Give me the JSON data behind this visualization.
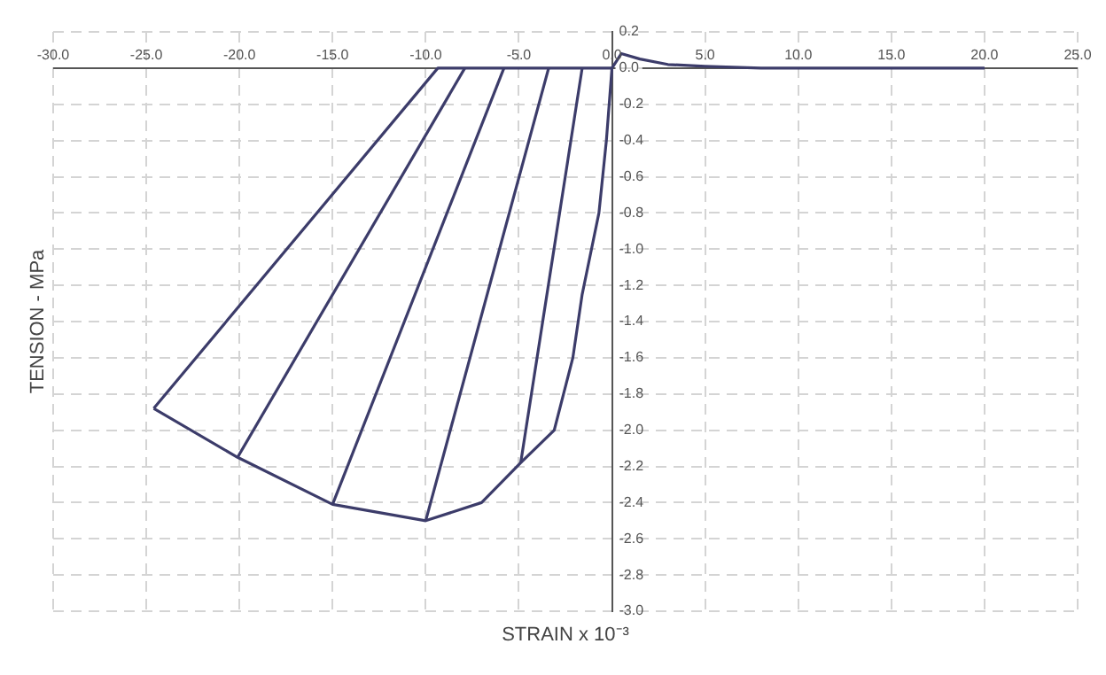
{
  "chart_data": {
    "type": "line",
    "xlabel": "STRAIN x 10⁻³",
    "ylabel": "TENSION - MPa",
    "series": [
      {
        "color": "#3c3c6a",
        "x": [
          20,
          8,
          5,
          3,
          1.5,
          0.5,
          0,
          -0.3,
          -0.7,
          -1.2,
          -1.6,
          -2.1,
          -3.1,
          -4.9,
          -7,
          -10,
          -15,
          -20.1,
          -24.6
        ],
        "values": [
          0,
          0,
          0.01,
          0.02,
          0.05,
          0.08,
          0,
          -0.4,
          -0.8,
          -1.05,
          -1.25,
          -1.6,
          -2.0,
          -2.18,
          -2.4,
          -2.5,
          -2.41,
          -2.15,
          -1.88
        ]
      },
      {
        "color": "#3c3c6a",
        "x": [
          -4.9,
          -1.6
        ],
        "values": [
          -2.18,
          0
        ]
      },
      {
        "color": "#3c3c6a",
        "x": [
          -10,
          -3.4
        ],
        "values": [
          -2.5,
          0
        ]
      },
      {
        "color": "#3c3c6a",
        "x": [
          -15,
          -5.8
        ],
        "values": [
          -2.41,
          0
        ]
      },
      {
        "color": "#3c3c6a",
        "x": [
          -20.1,
          -7.9
        ],
        "values": [
          -2.15,
          0
        ]
      },
      {
        "color": "#3c3c6a",
        "x": [
          -24.6,
          -9.35,
          0
        ],
        "values": [
          -1.88,
          0,
          0
        ]
      }
    ],
    "xlim": [
      -30,
      25
    ],
    "xticks": [
      {
        "value": -30,
        "label": "-30.0"
      },
      {
        "value": -25,
        "label": "-25.0"
      },
      {
        "value": -20,
        "label": "-20.0"
      },
      {
        "value": -15,
        "label": "-15.0"
      },
      {
        "value": -10,
        "label": "-10.0"
      },
      {
        "value": -5,
        "label": "-5.0"
      },
      {
        "value": 0,
        "label": "0.0"
      },
      {
        "value": 5,
        "label": "5.0"
      },
      {
        "value": 10,
        "label": "10.0"
      },
      {
        "value": 15,
        "label": "15.0"
      },
      {
        "value": 20,
        "label": "20.0"
      },
      {
        "value": 25,
        "label": "25.0"
      }
    ],
    "ylim": [
      -3,
      0.2
    ],
    "yticks": [
      0.2,
      {
        "value": 0,
        "label": "0.0"
      },
      -0.2,
      -0.4,
      -0.6,
      -0.8,
      {
        "value": -1,
        "label": "-1.0"
      },
      -1.2,
      -1.4,
      -1.6,
      -1.8,
      {
        "value": -2,
        "label": "-2.0"
      },
      -2.2,
      -2.4,
      -2.6,
      -2.8,
      {
        "value": -3,
        "label": "-3.0"
      }
    ],
    "grid": true,
    "legend": false,
    "marker": "none",
    "line_style": "solid"
  }
}
